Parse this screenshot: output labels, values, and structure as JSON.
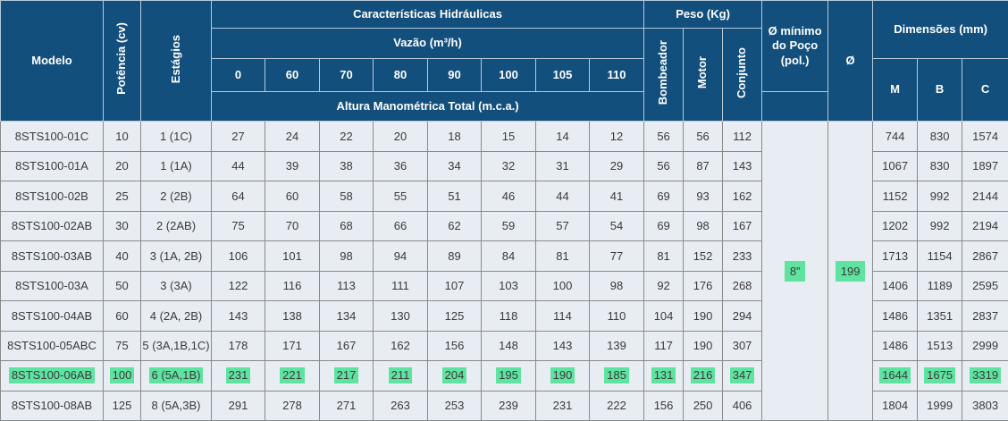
{
  "header": {
    "modelo": "Modelo",
    "potencia": "Potência (cv)",
    "estagios": "Estágios",
    "caracteristicas": "Características Hidráulicas",
    "vazao": "Vazão (m³/h)",
    "flows": [
      "0",
      "60",
      "70",
      "80",
      "90",
      "100",
      "105",
      "110"
    ],
    "altura": "Altura Manométrica Total (m.c.a.)",
    "peso": "Peso (Kg)",
    "bombeador": "Bombeador",
    "motor": "Motor",
    "conjunto": "Conjunto",
    "poco": "Ø mínimo do Poço (pol.)",
    "diam_symbol": "Ø",
    "dimensoes": "Dimensões (mm)",
    "dim_m": "M",
    "dim_b": "B",
    "dim_c": "C"
  },
  "merged": {
    "poco_value": "8”",
    "diam_value": "199"
  },
  "highlight_color": "#5fe3a1",
  "header_color": "#134f7d",
  "rows": [
    {
      "modelo": "8STS100-01C",
      "potencia": "10",
      "estagios": "1 (1C)",
      "heights": [
        "27",
        "24",
        "22",
        "20",
        "18",
        "15",
        "14",
        "12"
      ],
      "bombeador": "56",
      "motor": "56",
      "conjunto": "112",
      "m": "744",
      "b": "830",
      "c": "1574",
      "highlight": false
    },
    {
      "modelo": "8STS100-01A",
      "potencia": "20",
      "estagios": "1 (1A)",
      "heights": [
        "44",
        "39",
        "38",
        "36",
        "34",
        "32",
        "31",
        "29"
      ],
      "bombeador": "56",
      "motor": "87",
      "conjunto": "143",
      "m": "1067",
      "b": "830",
      "c": "1897",
      "highlight": false
    },
    {
      "modelo": "8STS100-02B",
      "potencia": "25",
      "estagios": "2 (2B)",
      "heights": [
        "64",
        "60",
        "58",
        "55",
        "51",
        "46",
        "44",
        "41"
      ],
      "bombeador": "69",
      "motor": "93",
      "conjunto": "162",
      "m": "1152",
      "b": "992",
      "c": "2144",
      "highlight": false
    },
    {
      "modelo": "8STS100-02AB",
      "potencia": "30",
      "estagios": "2 (2AB)",
      "heights": [
        "75",
        "70",
        "68",
        "66",
        "62",
        "59",
        "57",
        "54"
      ],
      "bombeador": "69",
      "motor": "98",
      "conjunto": "167",
      "m": "1202",
      "b": "992",
      "c": "2194",
      "highlight": false
    },
    {
      "modelo": "8STS100-03AB",
      "potencia": "40",
      "estagios": "3 (1A, 2B)",
      "heights": [
        "106",
        "101",
        "98",
        "94",
        "89",
        "84",
        "81",
        "77"
      ],
      "bombeador": "81",
      "motor": "152",
      "conjunto": "233",
      "m": "1713",
      "b": "1154",
      "c": "2867",
      "highlight": false
    },
    {
      "modelo": "8STS100-03A",
      "potencia": "50",
      "estagios": "3 (3A)",
      "heights": [
        "122",
        "116",
        "113",
        "111",
        "107",
        "103",
        "100",
        "98"
      ],
      "bombeador": "92",
      "motor": "176",
      "conjunto": "268",
      "m": "1406",
      "b": "1189",
      "c": "2595",
      "highlight": false
    },
    {
      "modelo": "8STS100-04AB",
      "potencia": "60",
      "estagios": "4 (2A, 2B)",
      "heights": [
        "143",
        "138",
        "134",
        "130",
        "125",
        "118",
        "114",
        "110"
      ],
      "bombeador": "104",
      "motor": "190",
      "conjunto": "294",
      "m": "1486",
      "b": "1351",
      "c": "2837",
      "highlight": false
    },
    {
      "modelo": "8STS100-05ABC",
      "potencia": "75",
      "estagios": "5 (3A,1B,1C)",
      "heights": [
        "178",
        "171",
        "167",
        "162",
        "156",
        "148",
        "143",
        "139"
      ],
      "bombeador": "117",
      "motor": "190",
      "conjunto": "307",
      "m": "1486",
      "b": "1513",
      "c": "2999",
      "highlight": false
    },
    {
      "modelo": "8STS100-06AB",
      "potencia": "100",
      "estagios": "6 (5A,1B)",
      "heights": [
        "231",
        "221",
        "217",
        "211",
        "204",
        "195",
        "190",
        "185"
      ],
      "bombeador": "131",
      "motor": "216",
      "conjunto": "347",
      "m": "1644",
      "b": "1675",
      "c": "3319",
      "highlight": true
    },
    {
      "modelo": "8STS100-08AB",
      "potencia": "125",
      "estagios": "8 (5A,3B)",
      "heights": [
        "291",
        "278",
        "271",
        "263",
        "253",
        "239",
        "231",
        "222"
      ],
      "bombeador": "156",
      "motor": "250",
      "conjunto": "406",
      "m": "1804",
      "b": "1999",
      "c": "3803",
      "highlight": false
    }
  ]
}
